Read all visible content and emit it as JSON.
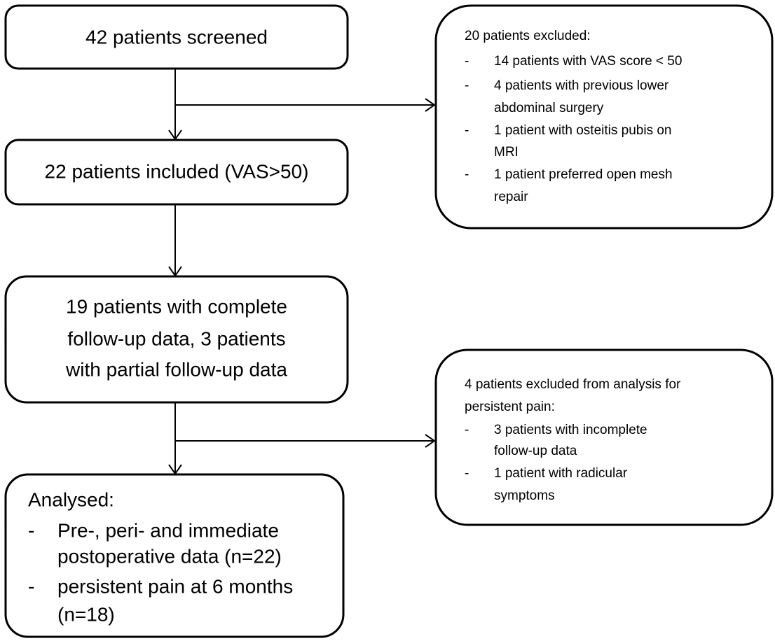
{
  "nodes": [
    {
      "lines": [
        {
          "text": "42 patients screened"
        }
      ]
    },
    {
      "lines": [
        {
          "text": "22 patients included (VAS>50)"
        }
      ]
    },
    {
      "lines": [
        {
          "text": "19 patients with complete"
        },
        {
          "text": "follow-up data, 3 patients"
        },
        {
          "text": "with partial follow-up data"
        }
      ]
    },
    {
      "lines": [
        {
          "text": "Analysed:"
        },
        {
          "marker": "-",
          "text": "Pre-, peri- and immediate"
        },
        {
          "text": "postoperative data (n=22)"
        },
        {
          "marker": "-",
          "text": "persistent pain at 6 months"
        },
        {
          "text": "(n=18)"
        }
      ]
    },
    {
      "lines": [
        {
          "text": "20 patients excluded:"
        },
        {
          "marker": "-",
          "text": "14 patients with VAS score < 50"
        },
        {
          "marker": "-",
          "text": "4 patients with previous lower"
        },
        {
          "text": "abdominal surgery"
        },
        {
          "marker": "-",
          "text": "1 patient with osteitis pubis on"
        },
        {
          "text": "MRI"
        },
        {
          "marker": "-",
          "text": "1 patient preferred open mesh"
        },
        {
          "text": "repair"
        }
      ]
    },
    {
      "lines": [
        {
          "text": "4 patients excluded from analysis for"
        },
        {
          "text": "persistent pain:"
        },
        {
          "marker": "-",
          "text": "3 patients with incomplete"
        },
        {
          "text": "follow-up data"
        },
        {
          "marker": "-",
          "text": "1 patient with radicular"
        },
        {
          "text": "symptoms"
        }
      ]
    }
  ]
}
